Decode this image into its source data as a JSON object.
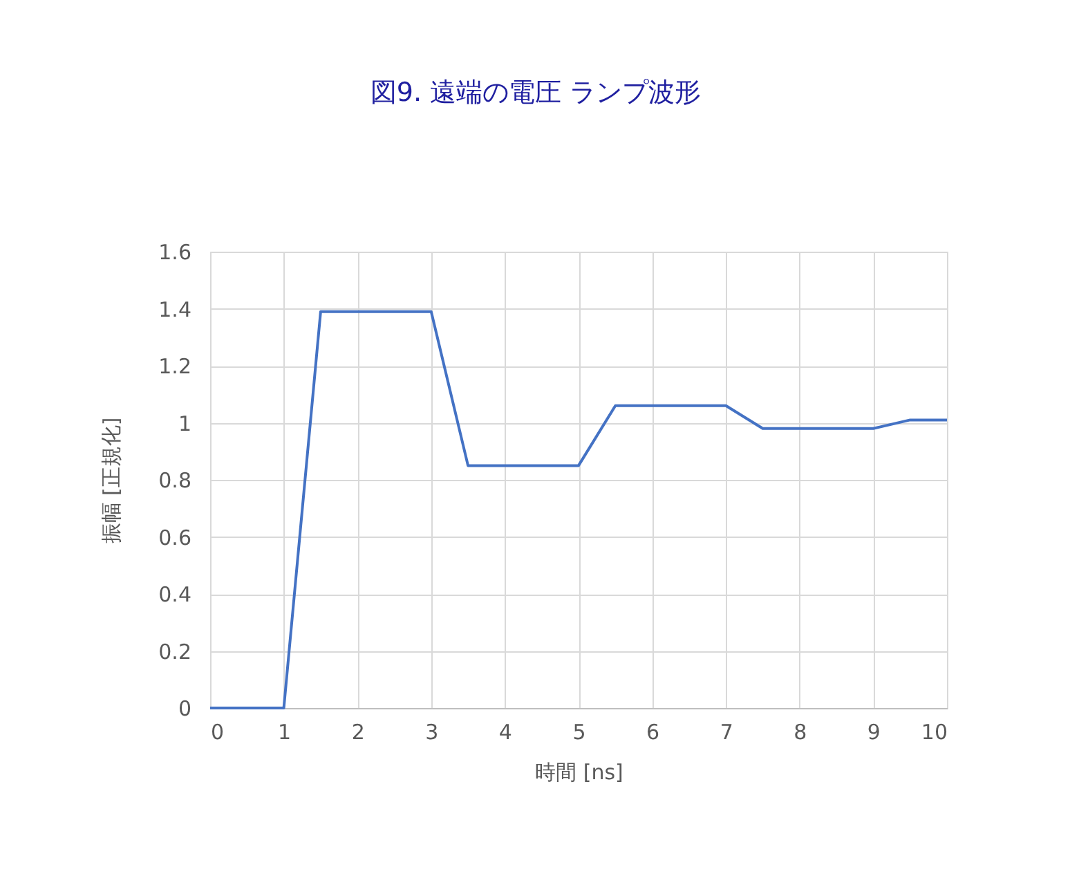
{
  "chart_data": {
    "type": "line",
    "title": "図9. 遠端の電圧 ランプ波形",
    "xlabel": "時間 [ns]",
    "ylabel": "振幅 [正規化]",
    "x": [
      0,
      1,
      1.5,
      3,
      3.5,
      5,
      5.5,
      7,
      7.5,
      9,
      9.5,
      10
    ],
    "series": [
      {
        "color": "#4472c4",
        "values": [
          0,
          0,
          1.39,
          1.39,
          0.85,
          0.85,
          1.06,
          1.06,
          0.98,
          0.98,
          1.01,
          1.01
        ]
      }
    ],
    "xlim": [
      0,
      10
    ],
    "xticks": [
      0,
      1,
      2,
      3,
      4,
      5,
      6,
      7,
      8,
      9,
      10
    ],
    "ylim": [
      0,
      1.6
    ],
    "yticks": [
      0,
      0.2,
      0.4,
      0.6,
      0.8,
      1,
      1.2,
      1.4,
      1.6
    ],
    "grid": true,
    "marker": "none",
    "line_style": "solid"
  }
}
